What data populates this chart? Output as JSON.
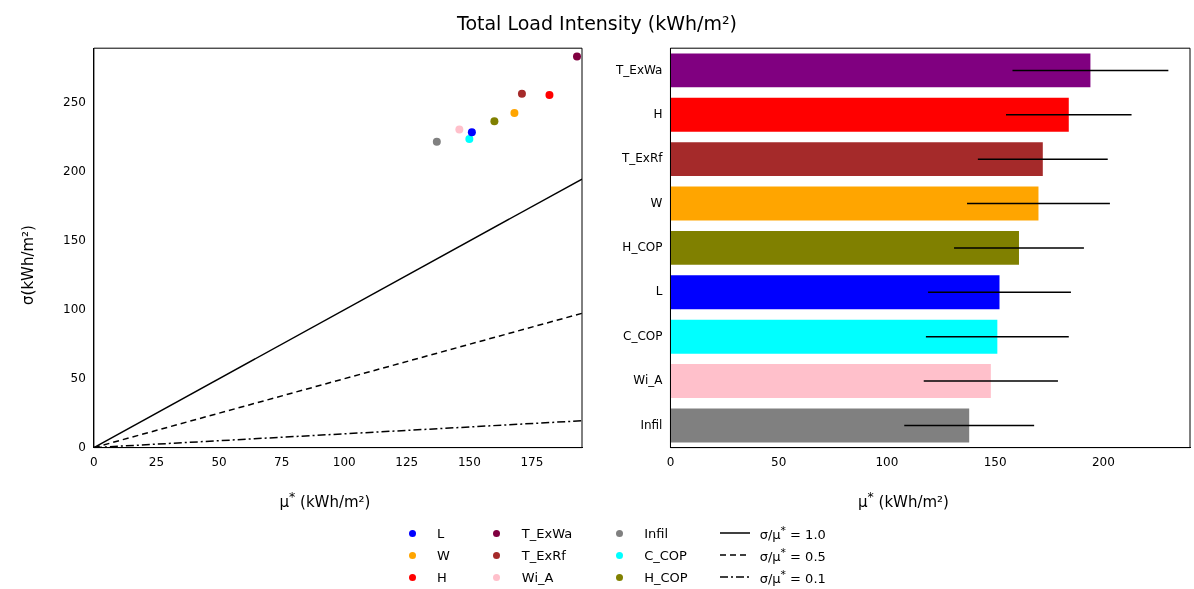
{
  "chart_data": [
    {
      "type": "scatter",
      "title": "Total Load Intensity (kWh/m²)",
      "xlabel": "μ$^{*}$ (kWh/m²)",
      "ylabel": "σ(kWh/m²)",
      "xlim": [
        0,
        195
      ],
      "xticks": [
        0,
        25,
        50,
        75,
        100,
        125,
        150,
        175
      ],
      "ylim": [
        0,
        290
      ],
      "yticks": [
        0,
        50,
        100,
        150,
        200,
        250
      ],
      "grid": false,
      "legend": "bottom",
      "marker": "circle",
      "series": [
        {
          "name": "L",
          "color": "#0000ff",
          "x": [
            151
          ],
          "values": [
            229
          ]
        },
        {
          "name": "W",
          "color": "#ffa500",
          "x": [
            168
          ],
          "values": [
            243
          ]
        },
        {
          "name": "H",
          "color": "#ff0000",
          "x": [
            182
          ],
          "values": [
            256
          ]
        },
        {
          "name": "T_ExWa",
          "color": "#800040",
          "x": [
            193
          ],
          "values": [
            284
          ]
        },
        {
          "name": "T_ExRf",
          "color": "#a52a2a",
          "x": [
            171
          ],
          "values": [
            257
          ]
        },
        {
          "name": "Wi_A",
          "color": "#ffc0cb",
          "x": [
            146
          ],
          "values": [
            231
          ]
        },
        {
          "name": "Infil",
          "color": "#808080",
          "x": [
            137
          ],
          "values": [
            222
          ]
        },
        {
          "name": "C_COP",
          "color": "#00ffff",
          "x": [
            150
          ],
          "values": [
            224
          ]
        },
        {
          "name": "H_COP",
          "color": "#808000",
          "x": [
            160
          ],
          "values": [
            237
          ]
        },
        {
          "name": "σ/μ$^{*}$ = 1.0",
          "type": "line",
          "color": "#000000",
          "line_style": "solid",
          "marker": "none",
          "x": [
            0,
            195
          ],
          "values": [
            0,
            195
          ]
        },
        {
          "name": "σ/μ$^{*}$ = 0.5",
          "type": "line",
          "color": "#000000",
          "line_style": "dashed",
          "marker": "none",
          "x": [
            0,
            195
          ],
          "values": [
            0,
            97.5
          ]
        },
        {
          "name": "σ/μ$^{*}$ = 0.1",
          "type": "line",
          "color": "#000000",
          "line_style": "dashdot",
          "marker": "none",
          "x": [
            0,
            195
          ],
          "values": [
            0,
            19.5
          ]
        }
      ]
    },
    {
      "type": "bar",
      "orientation": "horizontal",
      "xlabel": "μ$^{*}$ (kWh/m²)",
      "grid": false,
      "categories": [
        "T_ExWa",
        "H",
        "T_ExRf",
        "W",
        "H_COP",
        "L",
        "C_COP",
        "Wi_A",
        "Infil"
      ],
      "values": [
        194,
        184,
        172,
        170,
        161,
        152,
        151,
        148,
        138
      ],
      "errors": [
        36,
        29,
        30,
        33,
        30,
        33,
        33,
        31,
        30
      ],
      "colors": [
        "#800080",
        "#ff0000",
        "#a52a2a",
        "#ffa500",
        "#808000",
        "#0000ff",
        "#00ffff",
        "#ffc0cb",
        "#808080"
      ],
      "xlim": [
        0,
        240
      ],
      "xticks": [
        0,
        50,
        100,
        150,
        200
      ]
    }
  ]
}
